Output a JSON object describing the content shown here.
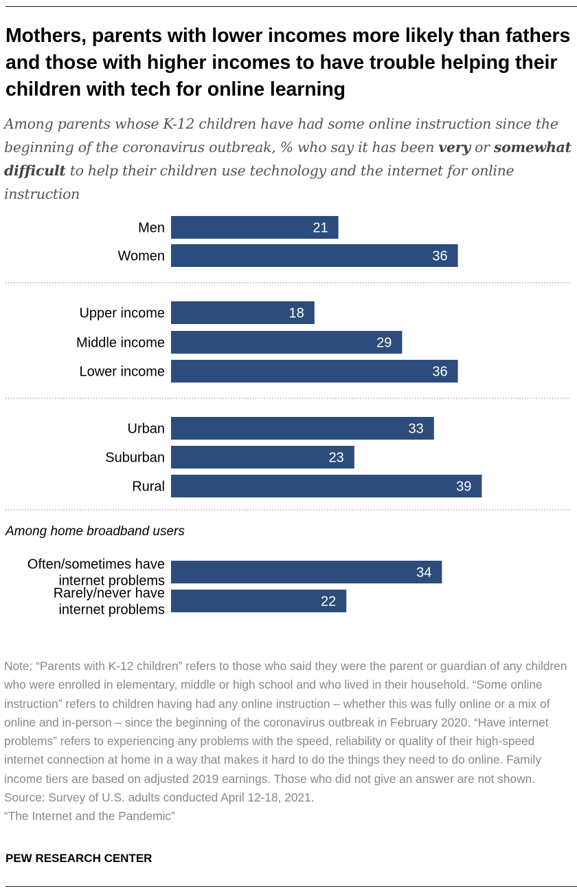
{
  "title": "Mothers, parents with lower incomes more likely than fathers and those with higher incomes to have trouble helping their children with tech for online learning",
  "subtitle": {
    "before": "Among parents whose K-12 children have had some online instruction since the beginning of the coronavirus outbreak, % who say it has been ",
    "bold1": "very",
    "middle": " or ",
    "bold2": "somewhat difficult",
    "after": " to help their children use technology and the internet for online instruction"
  },
  "group_note": "Among home broadband users",
  "chart_data": {
    "type": "bar",
    "orientation": "horizontal",
    "color": "#2c4c7c",
    "unit": "%",
    "xlim": [
      0,
      100
    ],
    "groups": [
      {
        "categories": [
          "Men",
          "Women"
        ],
        "values": [
          21,
          36
        ]
      },
      {
        "categories": [
          "Upper income",
          "Middle income",
          "Lower income"
        ],
        "values": [
          18,
          29,
          36
        ]
      },
      {
        "categories": [
          "Urban",
          "Suburban",
          "Rural"
        ],
        "values": [
          33,
          23,
          39
        ]
      },
      {
        "label": "Among home broadband users",
        "categories": [
          [
            "Often/sometimes have",
            "internet problems"
          ],
          [
            "Rarely/never have",
            "internet problems"
          ]
        ],
        "values": [
          34,
          22
        ]
      }
    ]
  },
  "note": "Note: “Parents with K-12 children” refers to those who said they were the parent or guardian of any children who were enrolled in elementary, middle or high school and who lived in their household. “Some online instruction” refers to children having had any online instruction – whether this was fully online or a mix of online and in-person – since the beginning of the coronavirus outbreak in February 2020. “Have internet problems” refers to experiencing any problems with the speed, reliability or quality of their high-speed internet connection at home in a way that makes it hard to do the things they need to do online. Family income tiers are based on adjusted 2019 earnings. Those who did not give an answer are not shown.",
  "source": "Source: Survey of U.S. adults conducted April 12-18, 2021.",
  "report": "“The Internet and the Pandemic”",
  "brand": "PEW RESEARCH CENTER"
}
